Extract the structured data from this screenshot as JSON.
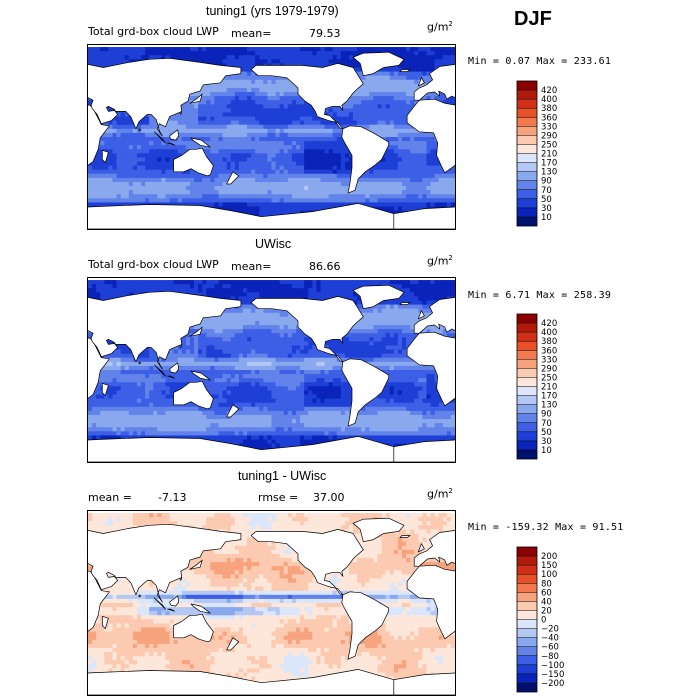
{
  "season": "DJF",
  "panels": [
    {
      "title": "tuning1 (yrs 1979-1979)",
      "variable": "Total grd-box cloud LWP",
      "stat_label": "mean=",
      "stat_value": "79.53",
      "unit": "g/m",
      "unit_sup": "2",
      "minmax": "Min =   0.07 Max = 233.61",
      "scheme": "abs",
      "levels": [
        "420",
        "400",
        "380",
        "360",
        "330",
        "290",
        "250",
        "210",
        "170",
        "130",
        "90",
        "70",
        "50",
        "30",
        "10"
      ],
      "colors": [
        "#8b0000",
        "#b01a0a",
        "#d03018",
        "#e8502a",
        "#f27a4e",
        "#f7a37e",
        "#fbcab0",
        "#fde7da",
        "#dbe6fb",
        "#b3c8f4",
        "#8aa8ee",
        "#6283ea",
        "#3d5fe6",
        "#1e3fd6",
        "#0a23b8",
        "#00106e"
      ]
    },
    {
      "title": "UWisc",
      "variable": "Total grd-box cloud LWP",
      "stat_label": "mean=",
      "stat_value": "86.66",
      "unit": "g/m",
      "unit_sup": "2",
      "minmax": "Min =   6.71 Max = 258.39",
      "scheme": "abs",
      "levels": [
        "420",
        "400",
        "380",
        "360",
        "330",
        "290",
        "250",
        "210",
        "170",
        "130",
        "90",
        "70",
        "50",
        "30",
        "10"
      ],
      "colors": [
        "#8b0000",
        "#b01a0a",
        "#d03018",
        "#e8502a",
        "#f27a4e",
        "#f7a37e",
        "#fbcab0",
        "#fde7da",
        "#dbe6fb",
        "#b3c8f4",
        "#8aa8ee",
        "#6283ea",
        "#3d5fe6",
        "#1e3fd6",
        "#0a23b8",
        "#00106e"
      ]
    },
    {
      "title": "tuning1 - UWisc",
      "mean_label": "mean =",
      "mean_value": "-7.13",
      "rmse_label": "rmse =",
      "rmse_value": "37.00",
      "unit": "g/m",
      "unit_sup": "2",
      "minmax": "Min = -159.32 Max =  91.51",
      "scheme": "diff",
      "levels": [
        "200",
        "150",
        "100",
        "80",
        "60",
        "40",
        "20",
        "0",
        "−20",
        "−40",
        "−60",
        "−80",
        "−100",
        "−150",
        "−200"
      ],
      "colors": [
        "#8b0000",
        "#b01a0a",
        "#d03018",
        "#e8502a",
        "#f27a4e",
        "#f7a37e",
        "#fbcab0",
        "#fde7da",
        "#dbe6fb",
        "#b3c8f4",
        "#8aa8ee",
        "#6283ea",
        "#3d5fe6",
        "#1e3fd6",
        "#0a23b8",
        "#00106e"
      ]
    }
  ]
}
